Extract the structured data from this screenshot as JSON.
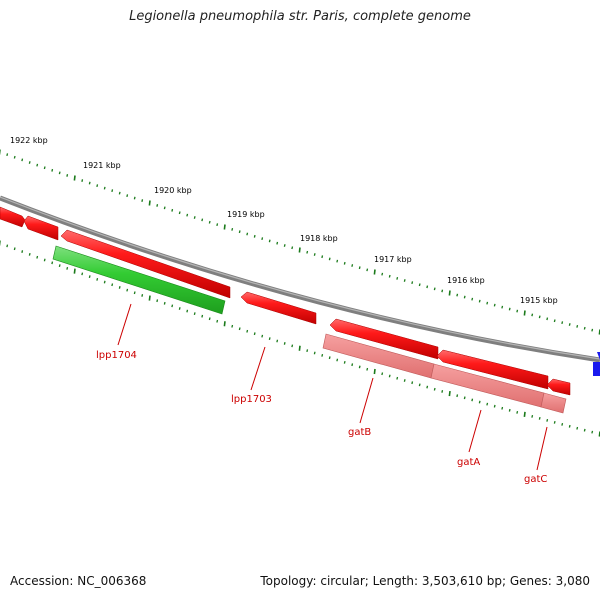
{
  "title": "Legionella pneumophila str. Paris, complete genome",
  "footer": {
    "accession": "Accession: NC_006368",
    "summary": "Topology: circular; Length: 3,503,610 bp; Genes: 3,080"
  },
  "colors": {
    "backbone": "#8a8a8a",
    "cds": "#e80000",
    "gene_pale": "#f08080",
    "gene_green": "#33cc33",
    "tick": "#1a7a1a",
    "label": "#cc0000",
    "neighbor": "#0000ee"
  },
  "ruler": {
    "kbp_labels": [
      "1922 kbp",
      "1921 kbp",
      "1920 kbp",
      "1919 kbp",
      "1918 kbp",
      "1917 kbp",
      "1916 kbp",
      "1915 kbp"
    ]
  },
  "gene_labels": [
    "lpp1704",
    "lpp1703",
    "gatB",
    "gatA",
    "gatC"
  ]
}
